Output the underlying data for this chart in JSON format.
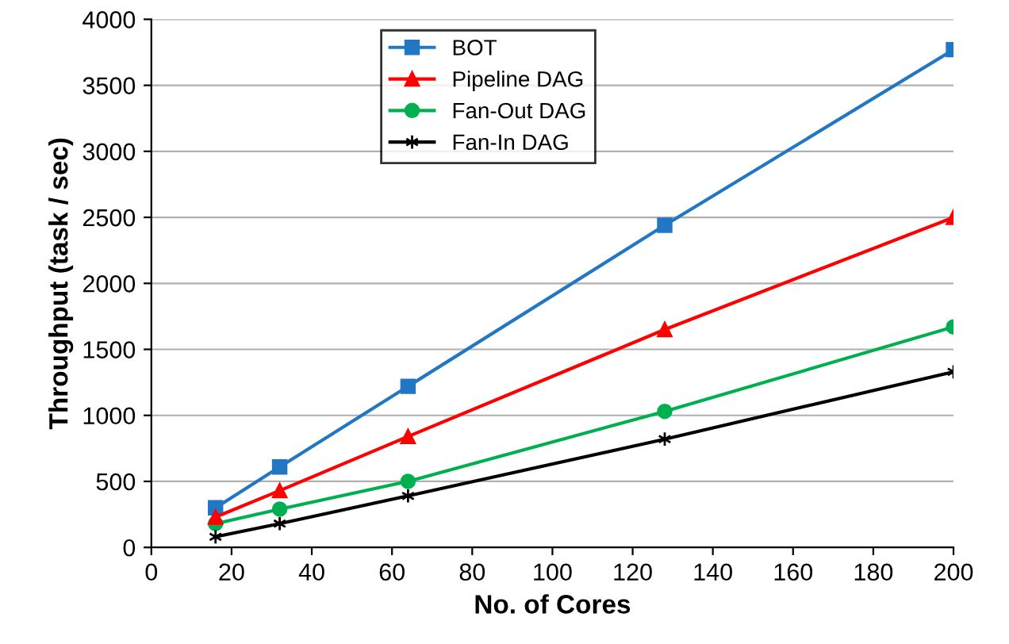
{
  "chart_data": {
    "type": "line",
    "xlabel": "No. of Cores",
    "ylabel": "Throughput (task / sec)",
    "x": [
      16,
      32,
      64,
      128,
      200
    ],
    "series": [
      {
        "name": "BOT",
        "color": "#2177c4",
        "marker": "square",
        "values": [
          300,
          610,
          1220,
          2440,
          3770
        ]
      },
      {
        "name": "Pipeline DAG",
        "color": "#ff0000",
        "marker": "triangle",
        "values": [
          230,
          430,
          840,
          1650,
          2500
        ]
      },
      {
        "name": "Fan-Out DAG",
        "color": "#00b050",
        "marker": "circle",
        "values": [
          180,
          290,
          500,
          1030,
          1670
        ]
      },
      {
        "name": "Fan-In DAG",
        "color": "#000000",
        "marker": "cross",
        "values": [
          80,
          180,
          390,
          820,
          1330
        ]
      }
    ],
    "xlim": [
      0,
      200
    ],
    "xticks": [
      0,
      20,
      40,
      60,
      80,
      100,
      120,
      140,
      160,
      180,
      200
    ],
    "ylim": [
      0,
      4000
    ],
    "yticks": [
      0,
      500,
      1000,
      1500,
      2000,
      2500,
      3000,
      3500,
      4000
    ],
    "grid": "y",
    "legend": "top",
    "line_style": "solid"
  }
}
